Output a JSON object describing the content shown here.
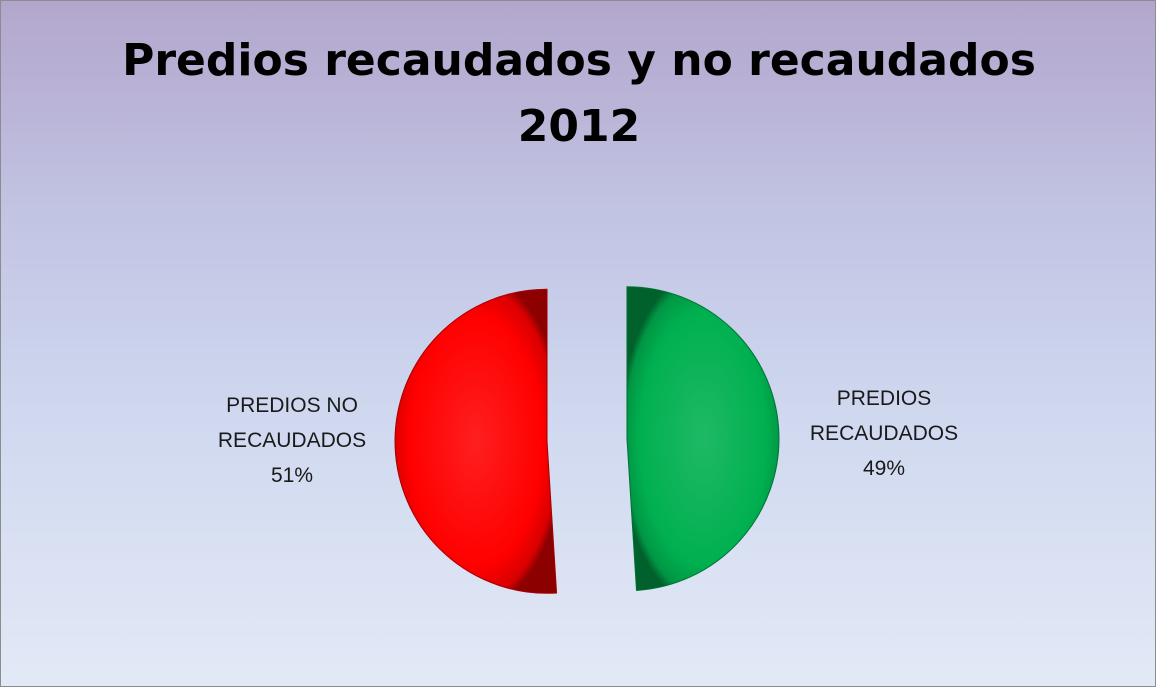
{
  "chart_data": {
    "type": "pie",
    "title_lines": [
      "Predios recaudados y no recaudados",
      "2012"
    ],
    "legend": "none",
    "slices": [
      {
        "label_lines": [
          "PREDIOS NO",
          "RECAUDADOS"
        ],
        "percent_label": "51%",
        "value": 51,
        "color": "#ff0000"
      },
      {
        "label_lines": [
          "PREDIOS",
          "RECAUDADOS"
        ],
        "percent_label": "49%",
        "value": 49,
        "color": "#00b050"
      }
    ]
  }
}
